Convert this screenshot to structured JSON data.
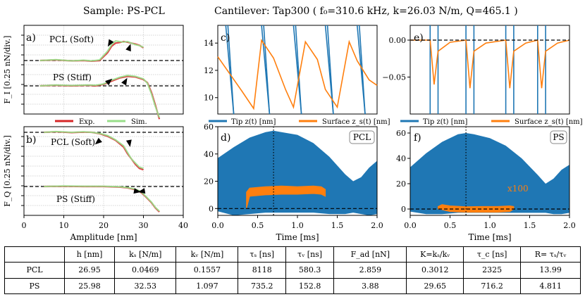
{
  "header": {
    "sample": "Sample: PS-PCL",
    "cantilever": "Cantilever: Tap300 ( f₀=310.6 kHz, k=26.03 N/m, Q=465.1 )"
  },
  "colors": {
    "tip": "#1f77b4",
    "surface": "#ff7f0e",
    "exp": "#d62728",
    "sim": "#98df8a",
    "ref": "#000000"
  },
  "chart_data": [
    {
      "id": "a",
      "type": "line",
      "panel_label": "a)",
      "ylabel": "F_I [0.25 nN/div.]",
      "xlim": [
        0,
        40
      ],
      "xticks": [
        0,
        10,
        20,
        30,
        40
      ],
      "annotations": [
        "PCL (Soft)",
        "PS (Stiff)"
      ],
      "legend": [
        "Exp.",
        "Sim."
      ],
      "series": [
        {
          "name": "Exp. PCL",
          "x": [
            4,
            8,
            12,
            15,
            17,
            19,
            21,
            22,
            23,
            24,
            25,
            26,
            27,
            28,
            29,
            30
          ],
          "y": [
            0.0,
            0.02,
            -0.01,
            0.0,
            -0.02,
            0.0,
            0.25,
            0.45,
            0.55,
            0.57,
            0.6,
            0.58,
            0.55,
            0.52,
            0.48,
            0.4
          ]
        },
        {
          "name": "Sim. PCL",
          "x": [
            4,
            8,
            12,
            15,
            17,
            19,
            21,
            22,
            23,
            24,
            25,
            26,
            27,
            28,
            29,
            30
          ],
          "y": [
            0.0,
            0.03,
            -0.01,
            0.01,
            -0.01,
            0.02,
            0.3,
            0.5,
            0.62,
            0.6,
            0.58,
            0.6,
            0.55,
            0.5,
            0.47,
            0.42
          ]
        },
        {
          "name": "Exp. PS",
          "x": [
            4,
            8,
            12,
            16,
            18,
            20,
            22,
            24,
            26,
            28,
            30,
            31,
            32,
            33,
            34
          ],
          "y": [
            0.0,
            0.02,
            0.0,
            0.02,
            0.0,
            0.05,
            0.15,
            0.25,
            0.3,
            0.28,
            0.2,
            0.1,
            -0.2,
            -0.6,
            -1.05
          ]
        },
        {
          "name": "Sim. PS",
          "x": [
            4,
            8,
            12,
            16,
            18,
            20,
            22,
            24,
            26,
            28,
            30,
            31,
            32,
            33,
            34
          ],
          "y": [
            0.0,
            0.03,
            0.01,
            0.03,
            0.02,
            0.06,
            0.18,
            0.27,
            0.33,
            0.3,
            0.22,
            0.08,
            -0.25,
            -0.65,
            -1.0
          ]
        }
      ]
    },
    {
      "id": "b",
      "type": "line",
      "panel_label": "b)",
      "ylabel": "F_Q [0.25 nN/div.]",
      "xlabel": "Amplitude [nm]",
      "xlim": [
        0,
        40
      ],
      "xticks": [
        0,
        10,
        20,
        30,
        40
      ],
      "annotations": [
        "PCL (Soft)",
        "PS (Stiff)"
      ],
      "series": [
        {
          "name": "Exp. PCL",
          "x": [
            5,
            8,
            12,
            15,
            17,
            19,
            21,
            23,
            25,
            26,
            27,
            28,
            29,
            30
          ],
          "y": [
            0.0,
            0.02,
            -0.01,
            0.01,
            0.0,
            -0.05,
            -0.15,
            -0.3,
            -0.55,
            -0.8,
            -1.0,
            -1.2,
            -1.35,
            -1.4
          ]
        },
        {
          "name": "Sim. PCL",
          "x": [
            5,
            8,
            12,
            15,
            17,
            19,
            21,
            23,
            25,
            26,
            27,
            28,
            29,
            30
          ],
          "y": [
            0.0,
            0.03,
            0.0,
            0.02,
            0.0,
            -0.04,
            -0.12,
            -0.28,
            -0.5,
            -0.75,
            -1.0,
            -1.15,
            -1.3,
            -1.35
          ]
        },
        {
          "name": "Exp. PS",
          "x": [
            5,
            10,
            15,
            20,
            24,
            26,
            28,
            29,
            30,
            31,
            32,
            33,
            34
          ],
          "y": [
            0.0,
            0.01,
            0.0,
            0.0,
            -0.02,
            -0.05,
            -0.12,
            -0.18,
            -0.3,
            -0.45,
            -0.6,
            -0.8,
            -0.95
          ]
        },
        {
          "name": "Sim. PS",
          "x": [
            5,
            10,
            15,
            20,
            24,
            26,
            28,
            29,
            30,
            31,
            32,
            33,
            34
          ],
          "y": [
            0.0,
            0.02,
            0.01,
            0.01,
            -0.01,
            -0.04,
            -0.1,
            -0.16,
            -0.28,
            -0.43,
            -0.58,
            -0.78,
            -0.92
          ]
        }
      ]
    },
    {
      "id": "c",
      "type": "line",
      "panel_label": "c)",
      "ylim": [
        8.8,
        15.3
      ],
      "yticks": [
        10,
        12,
        14
      ],
      "legend": [
        "Tip z(t) [nm]",
        "Surface z_s(t) [nm]"
      ],
      "series": [
        {
          "name": "Surface z_s(t)",
          "x": [
            0.0,
            0.3,
            0.45,
            0.55,
            0.7,
            0.85,
            0.95,
            1.1,
            1.25,
            1.35,
            1.5,
            1.65,
            1.75,
            1.9,
            2.0
          ],
          "y": [
            13.0,
            10.5,
            9.2,
            14.2,
            12.9,
            10.6,
            9.3,
            14.1,
            12.8,
            10.6,
            9.3,
            14.1,
            12.7,
            11.3,
            10.9
          ]
        },
        {
          "name": "Tip z(t)",
          "x": [
            0.1,
            0.2,
            0.55,
            0.65,
            0.95,
            1.05,
            1.35,
            1.45,
            1.75,
            1.85
          ],
          "y": [
            15.3,
            8.8,
            15.3,
            8.8,
            15.3,
            8.8,
            15.3,
            8.8,
            15.3,
            8.8
          ]
        }
      ]
    },
    {
      "id": "d",
      "type": "area",
      "panel_label": "d)",
      "box_label": "PCL",
      "xlabel": "Time [ms]",
      "xlim": [
        0,
        2
      ],
      "ylim": [
        -5,
        60
      ],
      "xticks": [
        "0.0",
        "0.5",
        "1.0",
        "1.5",
        "2.0"
      ],
      "yticks": [
        0,
        20,
        40,
        60
      ],
      "series": [
        {
          "name": "Tip envelope",
          "x": [
            0.0,
            0.2,
            0.4,
            0.6,
            0.7,
            0.8,
            1.0,
            1.2,
            1.4,
            1.6,
            1.7,
            1.8,
            1.9,
            2.0
          ],
          "upper": [
            37,
            45,
            52,
            56,
            57,
            56,
            54,
            48,
            38,
            25,
            20,
            23,
            30,
            35
          ],
          "lower": [
            -2,
            -5,
            -4,
            -3,
            -3,
            -3,
            -3,
            -3,
            -4,
            -4,
            -3,
            -4,
            -5,
            -4
          ]
        },
        {
          "name": "Surface band",
          "x": [
            0.36,
            0.4,
            0.6,
            0.8,
            1.0,
            1.2,
            1.3,
            1.35
          ],
          "upper": [
            12,
            15,
            16,
            16.5,
            16,
            16.5,
            16,
            14
          ],
          "lower": [
            0,
            9,
            10,
            10.5,
            10.5,
            11,
            10.5,
            9
          ]
        }
      ]
    },
    {
      "id": "e",
      "type": "line",
      "panel_label": "e)",
      "ylim": [
        -0.1,
        0.02
      ],
      "yticks": [
        "0.00",
        "−0.05"
      ],
      "legend": [
        "Tip z(t) [nm]",
        "Surface z_s(t) [nm]"
      ],
      "series": [
        {
          "name": "Surface z_s(t)",
          "x": [
            0.0,
            0.25,
            0.3,
            0.35,
            0.5,
            0.7,
            0.75,
            0.8,
            0.95,
            1.2,
            1.25,
            1.3,
            1.45,
            1.6,
            1.65,
            1.7,
            1.85,
            2.0
          ],
          "y": [
            0.0,
            0.0,
            -0.06,
            -0.015,
            -0.003,
            0.0,
            -0.065,
            -0.015,
            -0.004,
            0.0,
            -0.065,
            -0.015,
            -0.004,
            0.0,
            -0.065,
            -0.015,
            -0.004,
            0.0
          ]
        },
        {
          "name": "Tip z(t)",
          "x": [
            0.25,
            0.35,
            0.7,
            0.8,
            1.2,
            1.3,
            1.6,
            1.7
          ],
          "y": [
            0.02,
            -0.1,
            0.02,
            -0.1,
            0.02,
            -0.1,
            0.02,
            -0.1
          ]
        }
      ]
    },
    {
      "id": "f",
      "type": "area",
      "panel_label": "f)",
      "box_label": "PS",
      "xlabel": "Time [ms]",
      "xlim": [
        0,
        2
      ],
      "ylim": [
        -5,
        65
      ],
      "xticks": [
        "0.0",
        "0.5",
        "1.0",
        "1.5",
        "2.0"
      ],
      "yticks": [
        0,
        20,
        40,
        60
      ],
      "annotation": "x100",
      "series": [
        {
          "name": "Tip envelope",
          "x": [
            0.0,
            0.2,
            0.4,
            0.6,
            0.7,
            0.8,
            1.0,
            1.2,
            1.4,
            1.6,
            1.7,
            1.8,
            1.9,
            2.0
          ],
          "upper": [
            33,
            44,
            53,
            59,
            60,
            59,
            56,
            50,
            40,
            27,
            20,
            24,
            31,
            35
          ],
          "lower": [
            -2,
            -4,
            -4,
            -3,
            -3,
            -3,
            -3,
            -3,
            -3,
            -3,
            -3,
            -4,
            -4,
            -3
          ]
        },
        {
          "name": "Surface band x100",
          "x": [
            0.35,
            0.4,
            0.5,
            0.7,
            0.9,
            1.1,
            1.25,
            1.3
          ],
          "upper": [
            2,
            3.5,
            2.5,
            1.8,
            2.0,
            2.0,
            2.5,
            2
          ],
          "lower": [
            0,
            -0.5,
            -2,
            -2.5,
            -2.5,
            -2.5,
            -2.0,
            0
          ]
        }
      ]
    },
    {
      "id": "table",
      "type": "table",
      "columns": [
        "",
        "h [nm]",
        "kₛ [N/m]",
        "kᵥ [N/m]",
        "τₛ [ns]",
        "τᵥ [ns]",
        "F_ad [nN]",
        "K=kₛ/kᵥ",
        "τ_c [ns]",
        "R= τₛ/τᵥ"
      ],
      "rows": [
        [
          "PCL",
          "26.95",
          "0.0469",
          "0.1557",
          "8118",
          "580.3",
          "2.859",
          "0.3012",
          "2325",
          "13.99"
        ],
        [
          "PS",
          "25.98",
          "32.53",
          "1.097",
          "735.2",
          "152.8",
          "3.88",
          "29.65",
          "716.2",
          "4.811"
        ]
      ]
    }
  ]
}
